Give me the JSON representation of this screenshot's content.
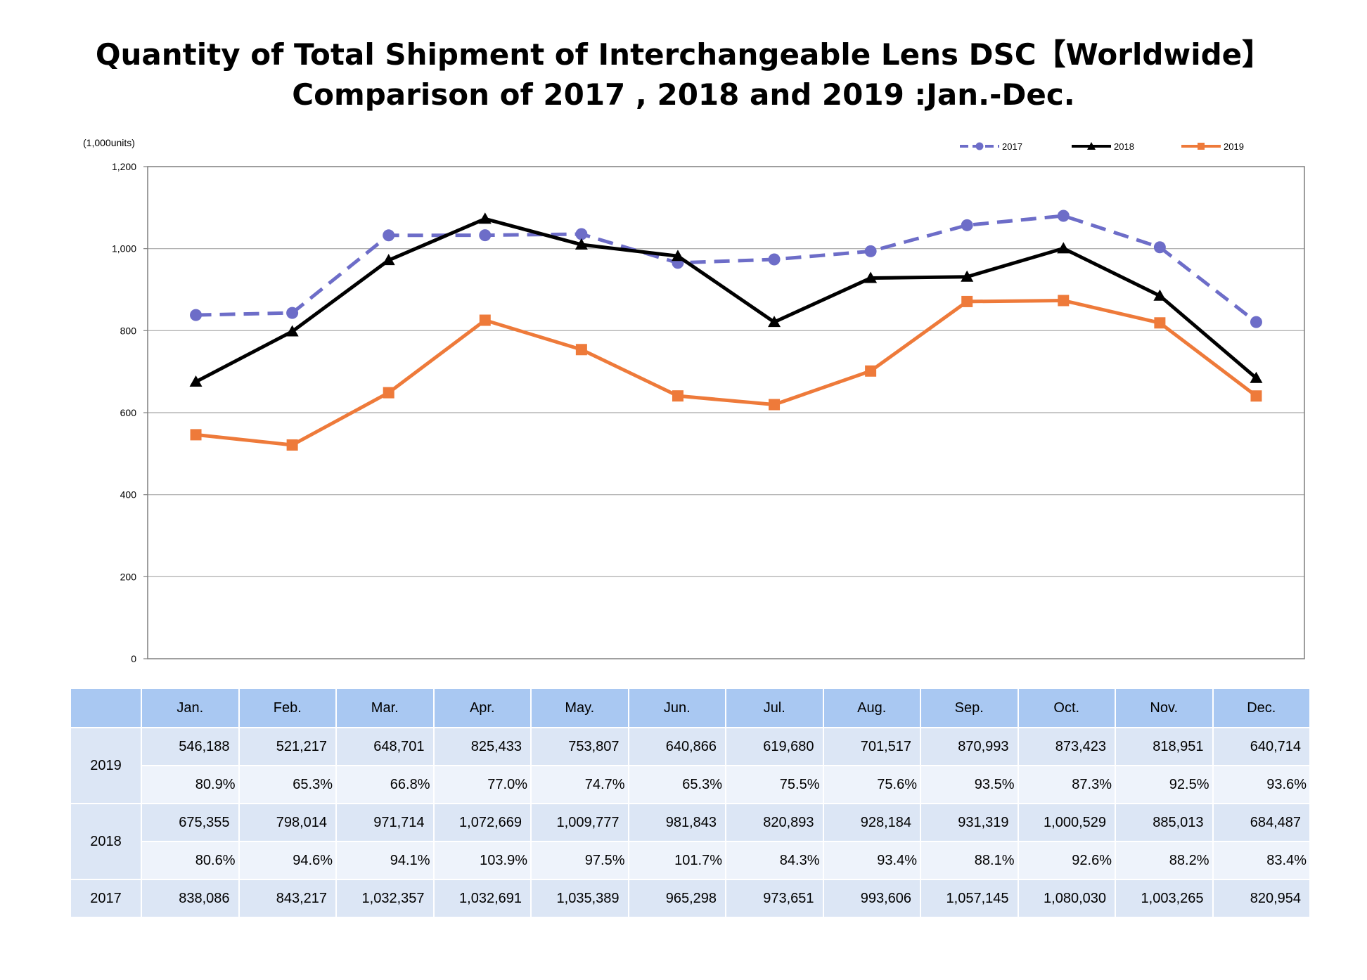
{
  "page": {
    "title_line1": "Quantity of Total Shipment of Interchangeable Lens DSC【Worldwide】",
    "title_line2": "Comparison of 2017 , 2018 and 2019 :Jan.-Dec."
  },
  "colors": {
    "s2017": "#6d6dc8",
    "s2018": "#000000",
    "s2019": "#ee7a3a",
    "table_header": "#a9c8f2",
    "table_qty": "#dce6f5",
    "table_pct": "#eef3fb",
    "gridline": "#a6a6a6"
  },
  "chart_data": {
    "type": "line",
    "unit_label": "(1,000units)",
    "categories": [
      "Jan.",
      "Feb.",
      "Mar.",
      "Apr.",
      "May.",
      "Jun.",
      "Jul.",
      "Aug.",
      "Sep.",
      "Oct.",
      "Nov.",
      "Dec."
    ],
    "ylim": [
      0,
      1200
    ],
    "yticks": [
      0,
      200,
      400,
      600,
      800,
      1000,
      1200
    ],
    "ytick_labels": [
      "0",
      "200",
      "400",
      "600",
      "800",
      "1,000",
      "1,200"
    ],
    "grid": true,
    "legend_position": "top-right",
    "series": [
      {
        "name": "2017",
        "marker": "circle",
        "line_style": "dashed",
        "color": "#6d6dc8",
        "values": [
          838.086,
          843.217,
          1032.357,
          1032.691,
          1035.389,
          965.298,
          973.651,
          993.606,
          1057.145,
          1080.03,
          1003.265,
          820.954
        ]
      },
      {
        "name": "2018",
        "marker": "triangle",
        "line_style": "solid",
        "color": "#000000",
        "values": [
          675.355,
          798.014,
          971.714,
          1072.669,
          1009.777,
          981.843,
          820.893,
          928.184,
          931.319,
          1000.529,
          885.013,
          684.487
        ]
      },
      {
        "name": "2019",
        "marker": "square",
        "line_style": "solid",
        "color": "#ee7a3a",
        "values": [
          546.188,
          521.217,
          648.701,
          825.433,
          753.807,
          640.866,
          619.68,
          701.517,
          870.993,
          873.423,
          818.951,
          640.714
        ]
      }
    ]
  },
  "table": {
    "months": [
      "Jan.",
      "Feb.",
      "Mar.",
      "Apr.",
      "May.",
      "Jun.",
      "Jul.",
      "Aug.",
      "Sep.",
      "Oct.",
      "Nov.",
      "Dec."
    ],
    "rows": [
      {
        "year": "2019",
        "quantities": [
          "546,188",
          "521,217",
          "648,701",
          "825,433",
          "753,807",
          "640,866",
          "619,680",
          "701,517",
          "870,993",
          "873,423",
          "818,951",
          "640,714"
        ],
        "ratios": [
          "80.9%",
          "65.3%",
          "66.8%",
          "77.0%",
          "74.7%",
          "65.3%",
          "75.5%",
          "75.6%",
          "93.5%",
          "87.3%",
          "92.5%",
          "93.6%"
        ]
      },
      {
        "year": "2018",
        "quantities": [
          "675,355",
          "798,014",
          "971,714",
          "1,072,669",
          "1,009,777",
          "981,843",
          "820,893",
          "928,184",
          "931,319",
          "1,000,529",
          "885,013",
          "684,487"
        ],
        "ratios": [
          "80.6%",
          "94.6%",
          "94.1%",
          "103.9%",
          "97.5%",
          "101.7%",
          "84.3%",
          "93.4%",
          "88.1%",
          "92.6%",
          "88.2%",
          "83.4%"
        ]
      },
      {
        "year": "2017",
        "quantities": [
          "838,086",
          "843,217",
          "1,032,357",
          "1,032,691",
          "1,035,389",
          "965,298",
          "973,651",
          "993,606",
          "1,057,145",
          "1,080,030",
          "1,003,265",
          "820,954"
        ],
        "ratios": []
      }
    ]
  }
}
